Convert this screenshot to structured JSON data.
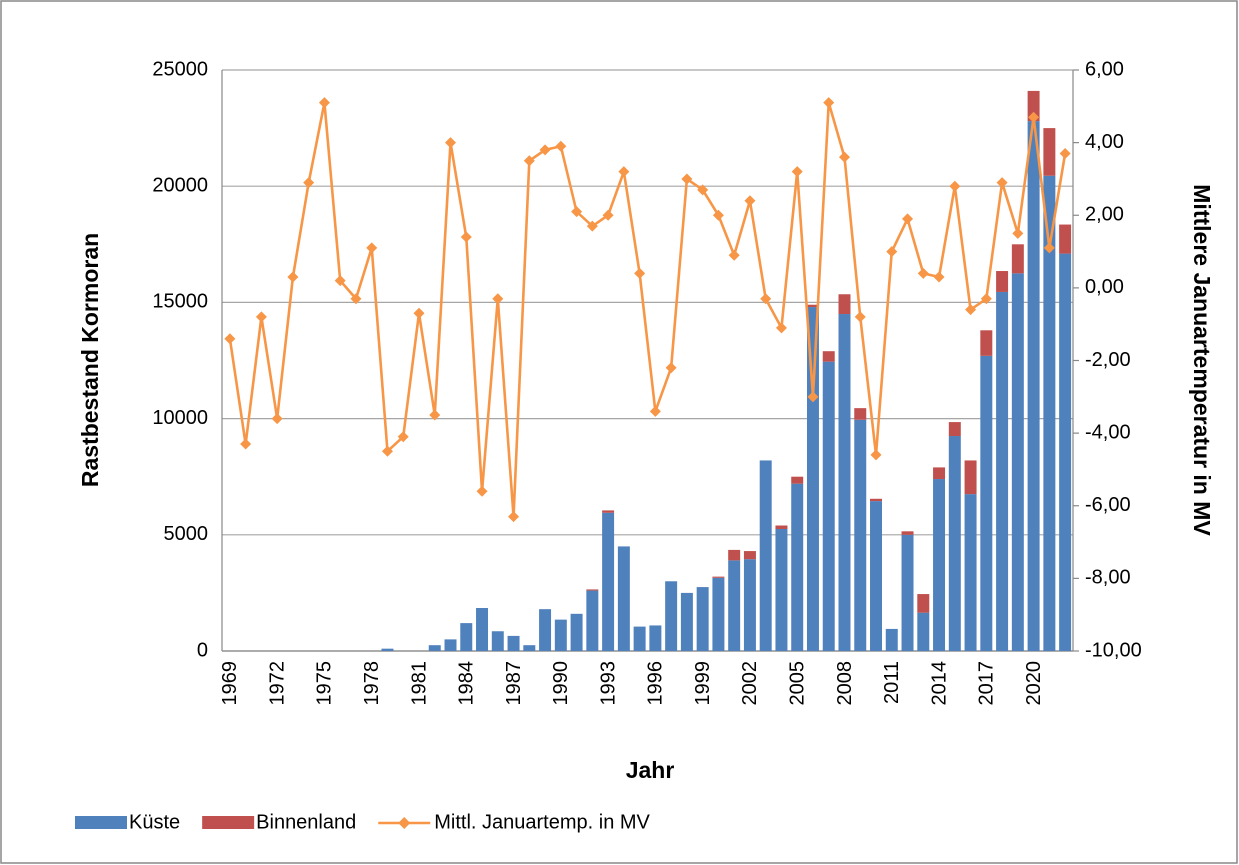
{
  "chart_data": {
    "type": "bar-line",
    "x_label": "Jahr",
    "y_label": "Rastbestand Kormoran",
    "y2_label": "Mittlere Januartemperatur in MV",
    "categories": [
      "1969",
      null,
      null,
      "1972",
      null,
      null,
      "1975",
      null,
      null,
      "1978",
      null,
      null,
      "1981",
      null,
      null,
      "1984",
      null,
      null,
      "1987",
      null,
      null,
      "1990",
      null,
      null,
      "1993",
      null,
      null,
      "1996",
      null,
      null,
      "1999",
      null,
      null,
      "2002",
      null,
      null,
      "2005",
      null,
      null,
      "2008",
      null,
      null,
      "2011",
      null,
      null,
      "2014",
      null,
      null,
      "2017",
      null,
      null,
      "2020",
      null,
      null
    ],
    "series": [
      {
        "name": "Küste",
        "type": "bar",
        "color": "#4f81bd",
        "values": [
          0,
          0,
          0,
          0,
          0,
          0,
          0,
          0,
          0,
          0,
          100,
          0,
          0,
          250,
          500,
          1200,
          1850,
          850,
          650,
          250,
          1800,
          1350,
          1600,
          2600,
          5950,
          4500,
          1050,
          1100,
          3000,
          2500,
          2750,
          3150,
          3900,
          3950,
          8200,
          5250,
          7200,
          14800,
          12450,
          14500,
          9950,
          6450,
          950,
          5000,
          1650,
          7400,
          9250,
          6750,
          12700,
          15450,
          16250,
          22800,
          20450,
          17100
        ]
      },
      {
        "name": "Binnenland",
        "type": "bar",
        "color": "#c0504d",
        "values": [
          0,
          0,
          0,
          0,
          0,
          0,
          0,
          0,
          0,
          0,
          0,
          0,
          0,
          0,
          0,
          0,
          0,
          0,
          0,
          0,
          0,
          0,
          0,
          50,
          100,
          0,
          0,
          0,
          0,
          0,
          0,
          50,
          450,
          350,
          0,
          150,
          300,
          100,
          450,
          850,
          500,
          100,
          0,
          150,
          800,
          500,
          600,
          1450,
          1100,
          900,
          1250,
          1300,
          2050,
          1250
        ]
      },
      {
        "name": "Mittl. Januartemp. in MV",
        "type": "line",
        "axis": "y2",
        "color": "#f79646",
        "values": [
          -1.4,
          -4.3,
          -0.8,
          -3.6,
          0.3,
          2.9,
          5.1,
          0.2,
          -0.3,
          1.1,
          -4.5,
          -4.1,
          -0.7,
          -3.5,
          4.0,
          1.4,
          -5.6,
          -0.3,
          -6.3,
          3.5,
          3.8,
          3.9,
          2.1,
          1.7,
          2.0,
          3.2,
          0.4,
          -3.4,
          -2.2,
          3.0,
          2.7,
          2.0,
          0.9,
          2.4,
          -0.3,
          -1.1,
          3.2,
          -3.0,
          5.1,
          3.6,
          -0.8,
          -4.6,
          1.0,
          1.9,
          0.4,
          0.3,
          2.8,
          -0.6,
          -0.3,
          2.9,
          1.5,
          4.7,
          1.1,
          3.7
        ]
      }
    ],
    "ylim": [
      0,
      25000
    ],
    "yticks": [
      0,
      5000,
      10000,
      15000,
      20000,
      25000
    ],
    "y2lim": [
      -10,
      6
    ],
    "y2ticks": [
      {
        "value": -10,
        "label": "-10,00"
      },
      {
        "value": -8,
        "label": "-8,00"
      },
      {
        "value": -6,
        "label": "-6,00"
      },
      {
        "value": -4,
        "label": "-4,00"
      },
      {
        "value": -2,
        "label": "-2,00"
      },
      {
        "value": 0,
        "label": "0,00"
      },
      {
        "value": 2,
        "label": "2,00"
      },
      {
        "value": 4,
        "label": "4,00"
      },
      {
        "value": 6,
        "label": "6,00"
      }
    ],
    "grid": true,
    "legend": "bottom"
  }
}
